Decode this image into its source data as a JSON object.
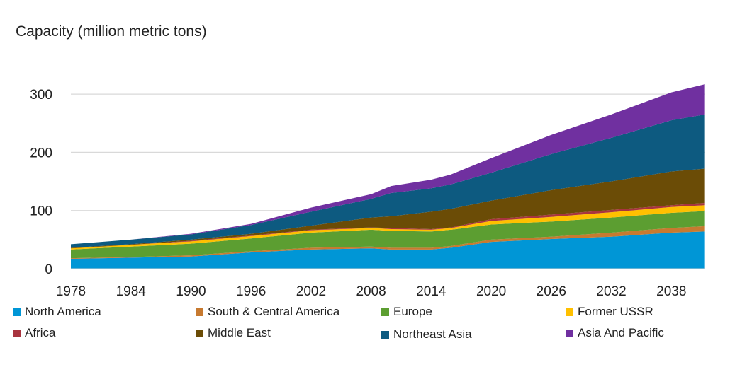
{
  "chart_data": {
    "type": "area",
    "stacked": true,
    "title": "Capacity (million metric tons)",
    "xlabel": "",
    "ylabel": "",
    "ylim": [
      0,
      320
    ],
    "yticks": [
      0,
      100,
      200,
      300
    ],
    "xticks": [
      1978,
      1984,
      1990,
      1996,
      2002,
      2008,
      2014,
      2020,
      2026,
      2032,
      2038
    ],
    "grid": true,
    "legend": "bottom",
    "x": [
      1978,
      1984,
      1990,
      1996,
      2002,
      2008,
      2010,
      2014,
      2016,
      2020,
      2026,
      2032,
      2038,
      2041
    ],
    "series": [
      {
        "name": "North America",
        "color": "#0096d6",
        "values": [
          17,
          19,
          21,
          28,
          33,
          35,
          33,
          33,
          36,
          46,
          51,
          55,
          62,
          64
        ]
      },
      {
        "name": "South & Central America",
        "color": "#c77a30",
        "values": [
          1,
          1,
          2,
          2,
          3,
          3,
          3,
          3,
          3,
          4,
          4,
          7,
          8,
          9
        ]
      },
      {
        "name": "Europe",
        "color": "#5c9e31",
        "values": [
          15,
          18,
          20,
          22,
          26,
          29,
          29,
          28,
          28,
          26,
          26,
          26,
          26,
          26
        ]
      },
      {
        "name": "Former USSR",
        "color": "#ffc000",
        "values": [
          2,
          3,
          4,
          4,
          4,
          3,
          3,
          3,
          3,
          6,
          8,
          9,
          10,
          10
        ]
      },
      {
        "name": "Africa",
        "color": "#a8343f",
        "values": [
          0,
          0,
          1,
          1,
          1,
          1,
          2,
          1,
          1,
          3,
          4,
          4,
          3,
          4
        ]
      },
      {
        "name": "Middle East",
        "color": "#6b4c06",
        "values": [
          1,
          1,
          2,
          3,
          7,
          17,
          20,
          30,
          32,
          32,
          42,
          49,
          58,
          59
        ]
      },
      {
        "name": "Northeast Asia",
        "color": "#0d5a80",
        "values": [
          6,
          8,
          9,
          15,
          24,
          32,
          40,
          40,
          42,
          48,
          62,
          75,
          88,
          93
        ]
      },
      {
        "name": "Asia And Pacific",
        "color": "#7030a0",
        "values": [
          0,
          0,
          1,
          2,
          7,
          8,
          12,
          15,
          17,
          25,
          33,
          40,
          48,
          52
        ]
      }
    ]
  }
}
